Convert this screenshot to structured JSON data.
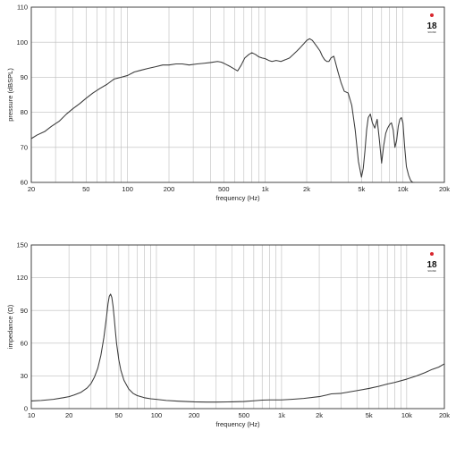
{
  "logo": {
    "number": "18",
    "word": "SOUND",
    "dot_color": "#d8262e"
  },
  "chart_data": [
    {
      "type": "line",
      "title": "",
      "xlabel": "frequency (Hz)",
      "ylabel": "pressure (dBSPL)",
      "xscale": "log",
      "xlim": [
        20,
        20000
      ],
      "ylim": [
        60,
        110
      ],
      "grid": true,
      "xticks": [
        20,
        50,
        100,
        200,
        500,
        1000,
        2000,
        5000,
        10000,
        20000
      ],
      "xtick_labels": [
        "20",
        "50",
        "100",
        "200",
        "500",
        "1k",
        "2k",
        "5k",
        "10k",
        "20k"
      ],
      "yticks": [
        60,
        70,
        80,
        90,
        100,
        110
      ],
      "ytick_labels": [
        "60",
        "70",
        "80",
        "90",
        "100",
        "110"
      ],
      "series": [
        {
          "x": [
            20,
            22,
            25,
            28,
            32,
            36,
            40,
            45,
            50,
            56,
            63,
            71,
            80,
            90,
            100,
            112,
            125,
            140,
            160,
            180,
            200,
            225,
            250,
            280,
            320,
            360,
            400,
            450,
            480,
            500,
            560,
            630,
            670,
            710,
            760,
            800,
            850,
            900,
            950,
            1000,
            1060,
            1120,
            1200,
            1300,
            1400,
            1500,
            1600,
            1700,
            1800,
            1900,
            2000,
            2100,
            2200,
            2300,
            2400,
            2500,
            2600,
            2700,
            2800,
            2900,
            3000,
            3150,
            3350,
            3550,
            3750,
            4000,
            4250,
            4500,
            4750,
            5000,
            5150,
            5300,
            5450,
            5600,
            5800,
            6000,
            6250,
            6500,
            6750,
            7000,
            7250,
            7500,
            7750,
            8000,
            8250,
            8500,
            8750,
            9000,
            9250,
            9500,
            9750,
            10000,
            10300,
            10600,
            11000,
            11400,
            11800,
            12100
          ],
          "y": [
            72.5,
            73.5,
            74.5,
            76,
            77.5,
            79.5,
            81,
            82.5,
            84,
            85.5,
            86.8,
            88,
            89.5,
            90,
            90.5,
            91.5,
            92,
            92.5,
            93,
            93.5,
            93.5,
            93.8,
            93.8,
            93.5,
            93.8,
            94,
            94.2,
            94.5,
            94.3,
            94,
            93,
            91.8,
            93.5,
            95.5,
            96.5,
            97,
            96.5,
            95.8,
            95.5,
            95.3,
            94.8,
            94.5,
            94.8,
            94.5,
            95,
            95.5,
            96.5,
            97.5,
            98.5,
            99.5,
            100.5,
            101,
            100.5,
            99.5,
            98.5,
            97.5,
            96,
            95,
            94.5,
            94.5,
            95.5,
            96,
            92,
            88.5,
            86,
            85.5,
            82,
            75,
            66,
            61.5,
            64,
            69,
            75,
            78.5,
            79.5,
            77,
            75.5,
            78,
            72,
            65.5,
            70.5,
            74,
            75.5,
            76.5,
            77,
            75,
            70,
            72,
            76,
            78,
            78.5,
            77,
            70,
            64.5,
            62,
            60.5,
            60,
            60
          ]
        }
      ]
    },
    {
      "type": "line",
      "title": "",
      "xlabel": "frequency (Hz)",
      "ylabel": "impedance (Ω)",
      "xscale": "log",
      "xlim": [
        10,
        20000
      ],
      "ylim": [
        0,
        150
      ],
      "grid": true,
      "xticks": [
        10,
        20,
        50,
        100,
        200,
        500,
        1000,
        2000,
        5000,
        10000,
        20000
      ],
      "xtick_labels": [
        "10",
        "20",
        "50",
        "100",
        "200",
        "500",
        "1k",
        "2k",
        "5k",
        "10k",
        "20k"
      ],
      "yticks": [
        0,
        30,
        60,
        90,
        120,
        150
      ],
      "ytick_labels": [
        "0",
        "30",
        "60",
        "90",
        "120",
        "150"
      ],
      "series": [
        {
          "x": [
            10,
            12,
            15,
            18,
            20,
            22,
            25,
            28,
            30,
            32,
            34,
            36,
            38,
            40,
            41,
            42,
            43,
            44,
            45,
            46,
            47,
            48,
            50,
            52,
            55,
            60,
            65,
            70,
            80,
            90,
            100,
            120,
            150,
            200,
            250,
            300,
            400,
            500,
            600,
            700,
            800,
            1000,
            1200,
            1500,
            2000,
            2300,
            2500,
            3000,
            4000,
            5000,
            6000,
            7000,
            8000,
            10000,
            12000,
            14000,
            16000,
            18000,
            20000
          ],
          "y": [
            7,
            7.5,
            8.5,
            10,
            11,
            12.5,
            15,
            19,
            23,
            29,
            37,
            49,
            65,
            85,
            96,
            103,
            105,
            102,
            94,
            83,
            71,
            60,
            45,
            35,
            26,
            18,
            14,
            12,
            10,
            9,
            8.5,
            7.5,
            6.8,
            6.2,
            6,
            6,
            6.2,
            6.5,
            7.2,
            7.8,
            8,
            8,
            8.5,
            9.3,
            11,
            12.5,
            13.5,
            14,
            16.5,
            18.5,
            20.5,
            22.5,
            24,
            27,
            30,
            33,
            36,
            38,
            41
          ]
        }
      ]
    }
  ]
}
